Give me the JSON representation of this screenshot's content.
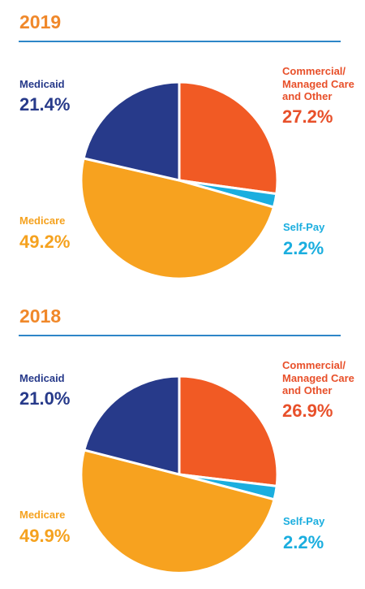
{
  "chart_data": [
    {
      "type": "pie",
      "title": "2019",
      "slices": [
        {
          "name": "Commercial/\nManaged Care\nand Other",
          "value": 27.2,
          "label": "27.2%",
          "color": "#F15A24"
        },
        {
          "name": "Self-Pay",
          "value": 2.2,
          "label": "2.2%",
          "color": "#1BAEDF"
        },
        {
          "name": "Medicare",
          "value": 49.2,
          "label": "49.2%",
          "color": "#F7A21F"
        },
        {
          "name": "Medicaid",
          "value": 21.4,
          "label": "21.4%",
          "color": "#273A8A"
        }
      ]
    },
    {
      "type": "pie",
      "title": "2018",
      "slices": [
        {
          "name": "Commercial/\nManaged Care\nand Other",
          "value": 26.9,
          "label": "26.9%",
          "color": "#F15A24"
        },
        {
          "name": "Self-Pay",
          "value": 2.2,
          "label": "2.2%",
          "color": "#1BAEDF"
        },
        {
          "name": "Medicare",
          "value": 49.9,
          "label": "49.9%",
          "color": "#F7A21F"
        },
        {
          "name": "Medicaid",
          "value": 21.0,
          "label": "21.0%",
          "color": "#273A8A"
        }
      ]
    }
  ]
}
